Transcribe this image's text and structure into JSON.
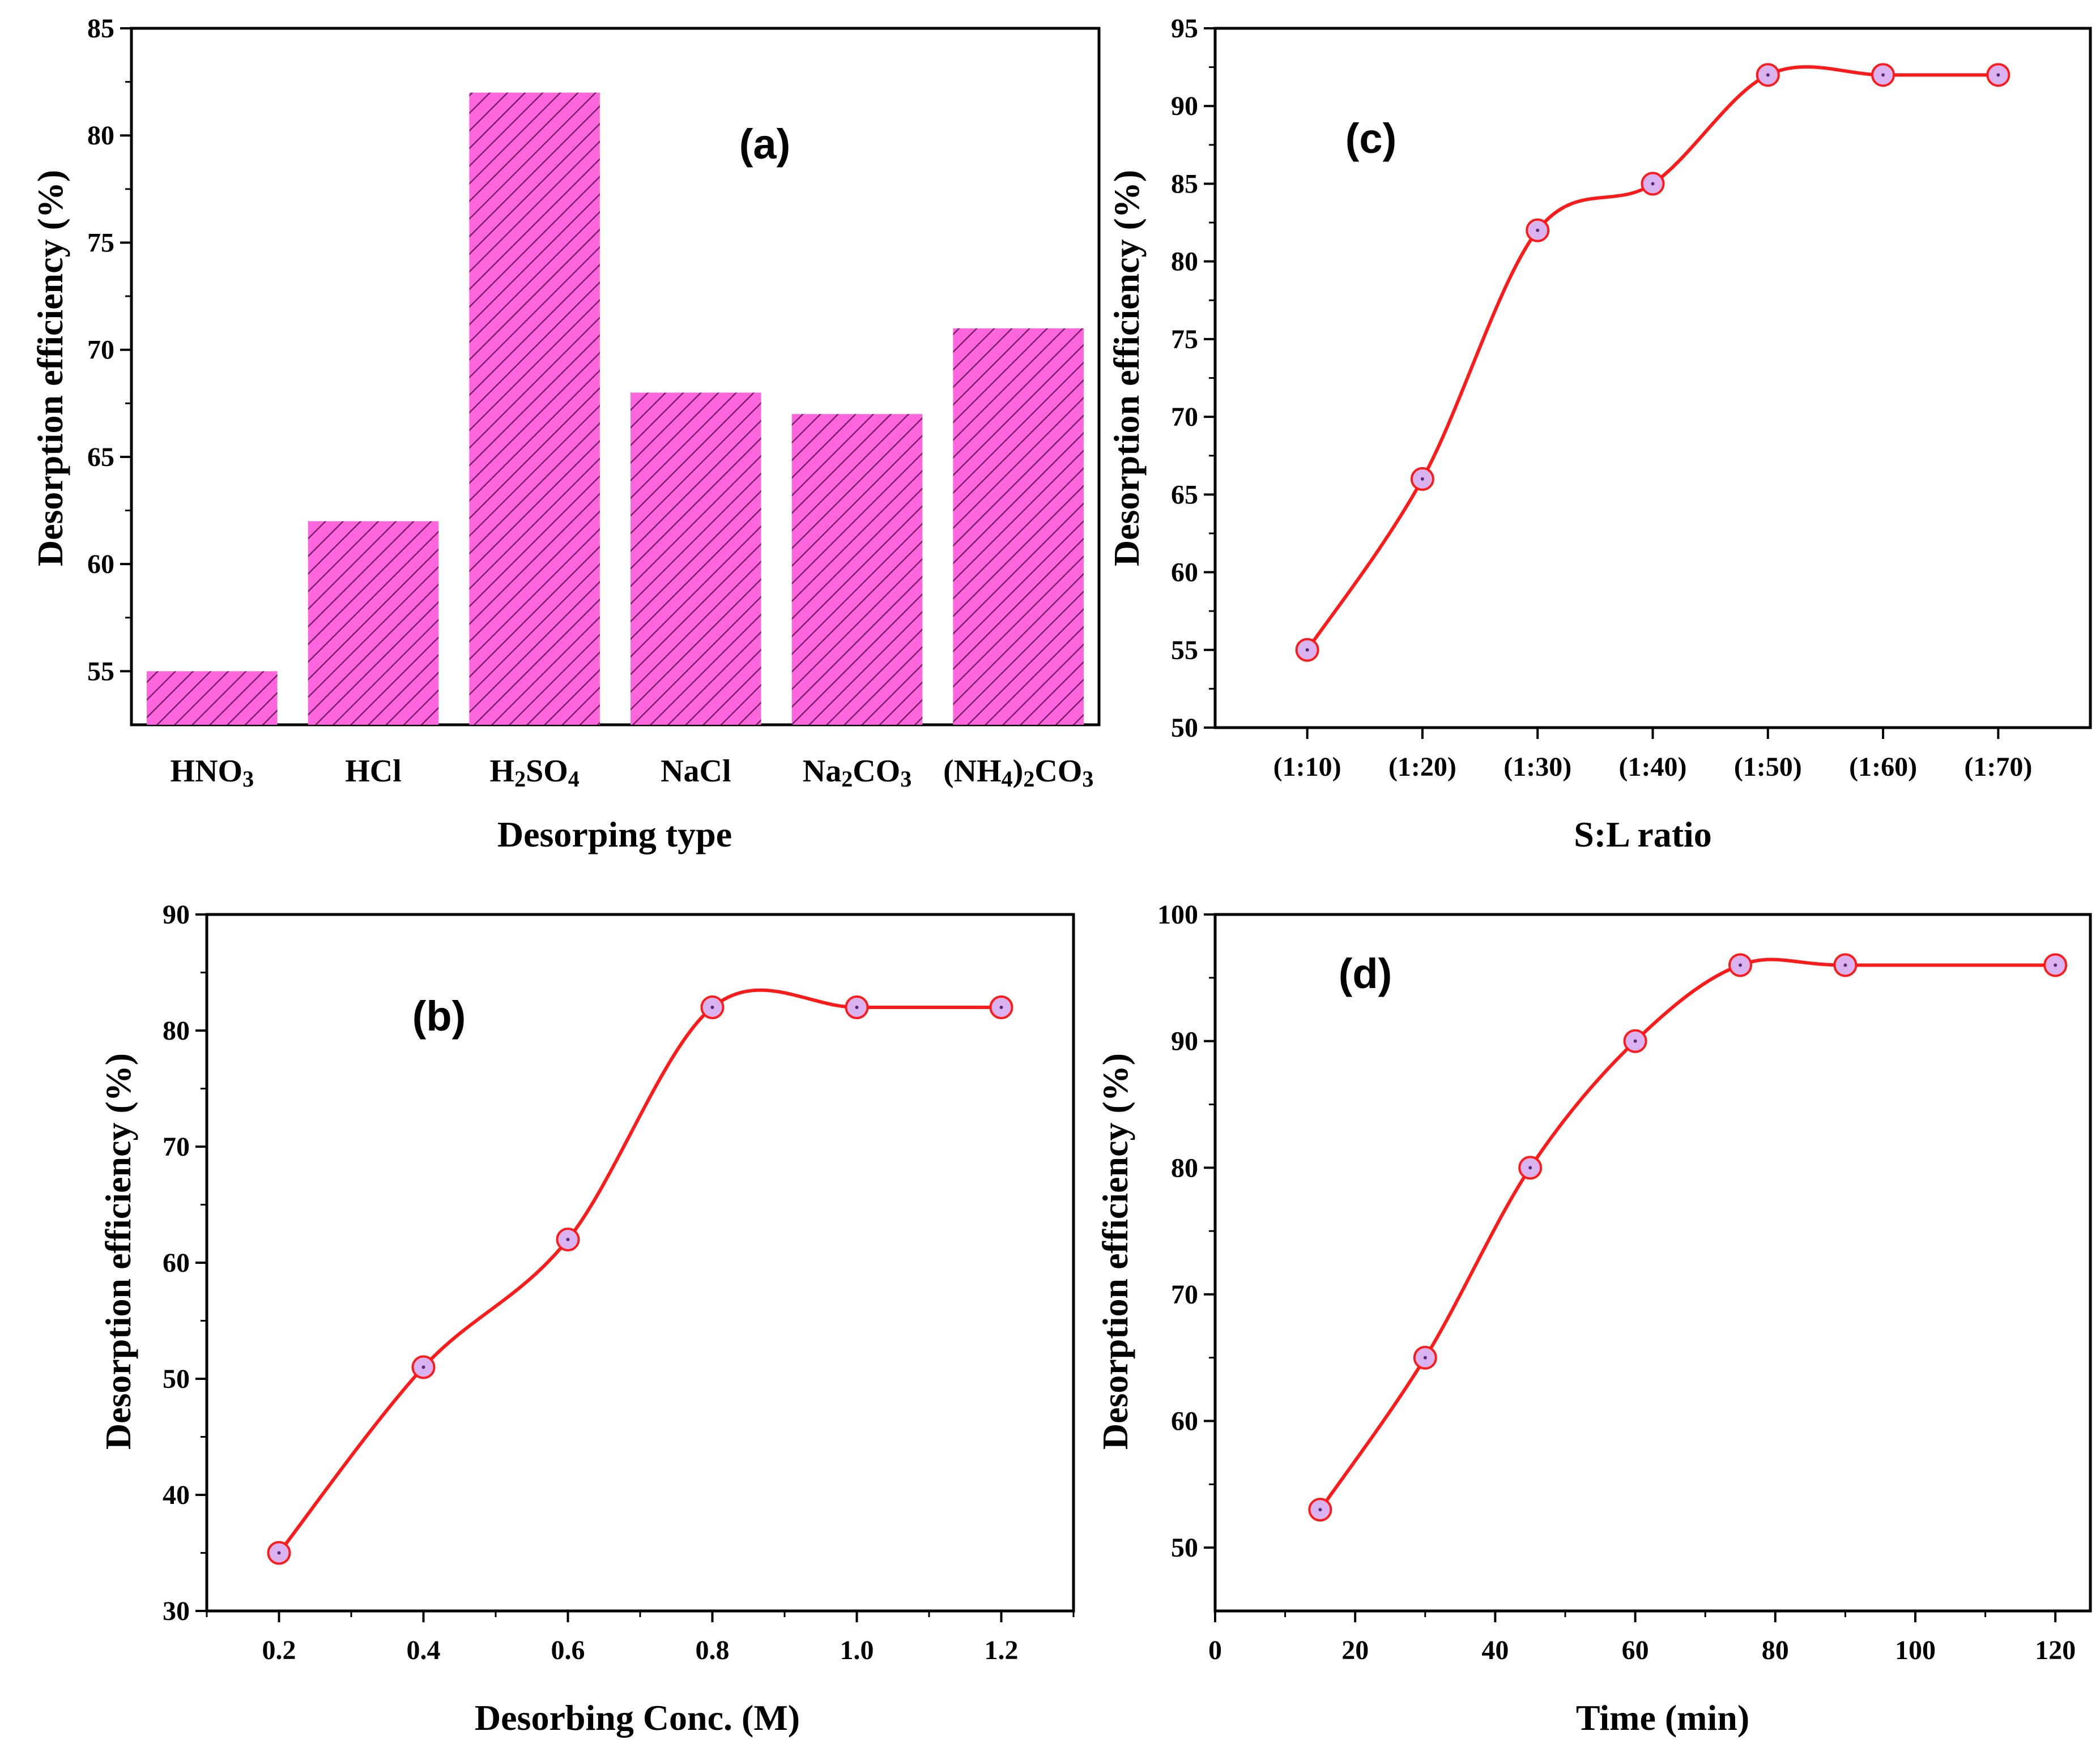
{
  "colors": {
    "bar_fill": "#ff66dd",
    "bar_hatch": "#7a1f6a",
    "line": "#ff1a1a",
    "marker_fill": "#d9b3f0",
    "marker_edge": "#ff1a1a"
  },
  "chart_data": [
    {
      "id": "a",
      "type": "bar",
      "panel_label": "(a)",
      "title": "",
      "xlabel": "Desorping type",
      "ylabel": "Desorption efficiency (%)",
      "categories": [
        "HNO3",
        "HCl",
        "H2SO4",
        "NaCl",
        "Na2CO3",
        "(NH4)2CO3"
      ],
      "category_labels": [
        [
          {
            "t": "HNO"
          },
          {
            "t": "3",
            "sub": true
          }
        ],
        [
          {
            "t": "HCl"
          }
        ],
        [
          {
            "t": "H"
          },
          {
            "t": "2",
            "sub": true
          },
          {
            "t": "SO"
          },
          {
            "t": "4",
            "sub": true
          }
        ],
        [
          {
            "t": "NaCl"
          }
        ],
        [
          {
            "t": "Na"
          },
          {
            "t": "2",
            "sub": true
          },
          {
            "t": "CO"
          },
          {
            "t": "3",
            "sub": true
          }
        ],
        [
          {
            "t": "(NH"
          },
          {
            "t": "4",
            "sub": true
          },
          {
            "t": ")"
          },
          {
            "t": "2",
            "sub": true
          },
          {
            "t": "CO"
          },
          {
            "t": "3",
            "sub": true
          }
        ]
      ],
      "values": [
        55,
        62,
        82,
        68,
        67,
        71
      ],
      "ylim": [
        52.5,
        85
      ],
      "yticks": [
        55,
        60,
        65,
        70,
        75,
        80,
        85
      ]
    },
    {
      "id": "c",
      "type": "line",
      "panel_label": "(c)",
      "title": "",
      "xlabel": "S:L ratio",
      "ylabel": "Desorption efficiency (%)",
      "categories": [
        "(1:10)",
        "(1:20)",
        "(1:30)",
        "(1:40)",
        "(1:50)",
        "(1:60)",
        "(1:70)"
      ],
      "values": [
        55,
        66,
        82,
        85,
        92,
        92,
        92
      ],
      "ylim": [
        50,
        95
      ],
      "yticks": [
        50,
        55,
        60,
        65,
        70,
        75,
        80,
        85,
        90,
        95
      ]
    },
    {
      "id": "b",
      "type": "line",
      "panel_label": "(b)",
      "title": "",
      "xlabel": "Desorbing Conc. (M)",
      "ylabel": "Desorption efficiency (%)",
      "x": [
        0.2,
        0.4,
        0.6,
        0.8,
        1.0,
        1.2
      ],
      "values": [
        35,
        51,
        62,
        82,
        82,
        82
      ],
      "xlim": [
        0.1,
        1.3
      ],
      "ylim": [
        30,
        90
      ],
      "xticks": [
        "0.2",
        "0.4",
        "0.6",
        "0.8",
        "1.0",
        "1.2"
      ],
      "yticks": [
        30,
        40,
        50,
        60,
        70,
        80,
        90
      ]
    },
    {
      "id": "d",
      "type": "line",
      "panel_label": "(d)",
      "title": "",
      "xlabel": "Time (min)",
      "ylabel": "Desorption efficiency (%)",
      "x": [
        15,
        30,
        45,
        60,
        75,
        90,
        120
      ],
      "values": [
        53,
        65,
        80,
        90,
        96,
        96,
        96
      ],
      "xlim": [
        0,
        125
      ],
      "ylim": [
        45,
        100
      ],
      "xticks": [
        "0",
        "20",
        "40",
        "60",
        "80",
        "100",
        "120"
      ],
      "yticks": [
        50,
        60,
        70,
        80,
        90,
        100
      ]
    }
  ]
}
